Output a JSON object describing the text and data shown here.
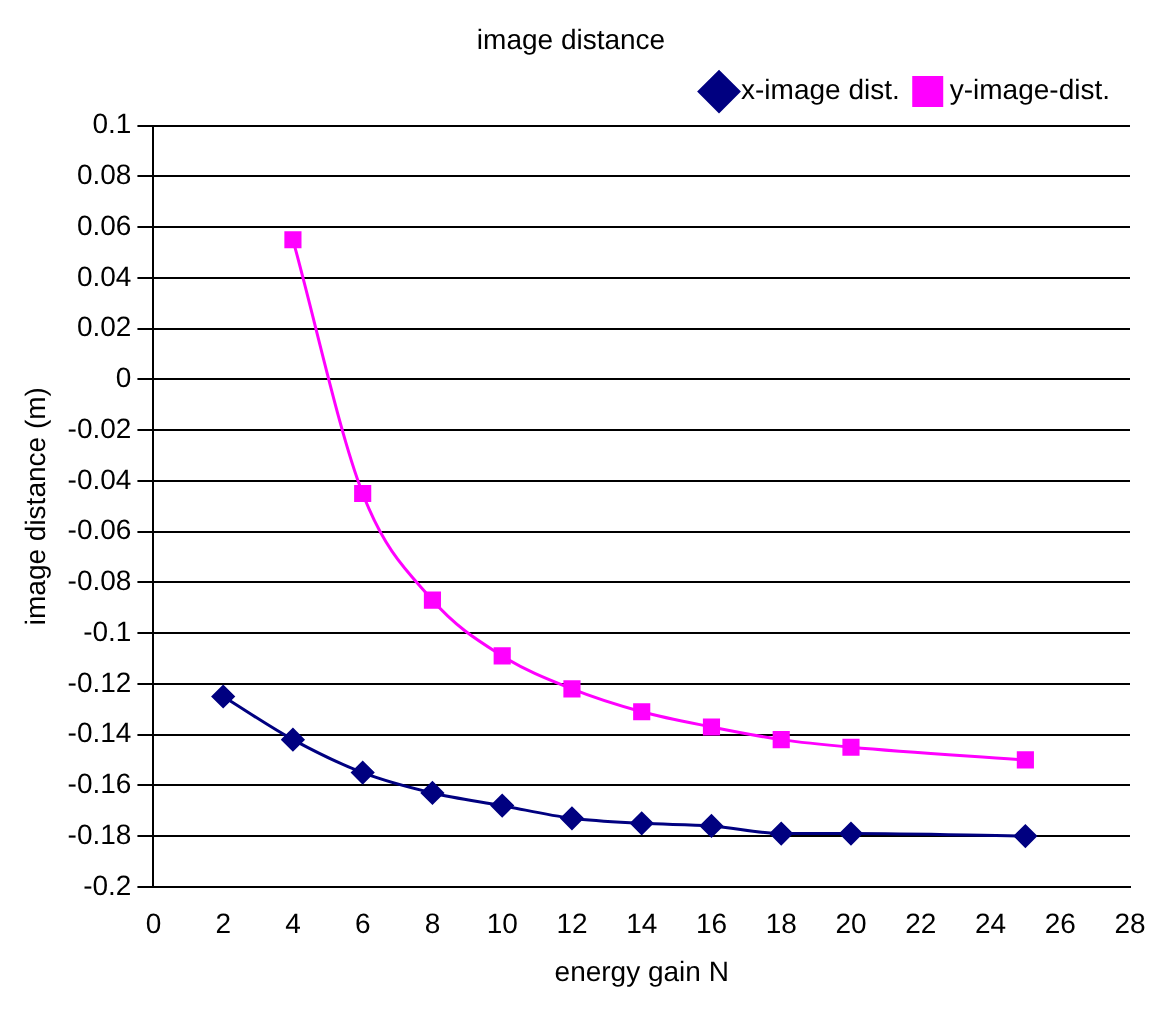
{
  "chart_data": {
    "type": "line",
    "title": "image distance",
    "xlabel": "energy gain N",
    "ylabel": "image distance (m)",
    "x": [
      2,
      4,
      6,
      8,
      10,
      12,
      14,
      16,
      18,
      20,
      25
    ],
    "series": [
      {
        "name": "x-image dist.",
        "color": "#000080",
        "marker": "diamond",
        "values": [
          -0.125,
          -0.142,
          -0.155,
          -0.163,
          -0.168,
          -0.173,
          -0.175,
          -0.176,
          -0.179,
          -0.179,
          -0.18
        ]
      },
      {
        "name": "y-image-dist.",
        "color": "#ff00ff",
        "marker": "square",
        "values": [
          null,
          0.055,
          -0.045,
          -0.087,
          -0.109,
          -0.122,
          -0.131,
          -0.137,
          -0.142,
          -0.145,
          -0.15
        ]
      }
    ],
    "xlim": [
      0,
      28
    ],
    "xticks": [
      0,
      2,
      4,
      6,
      8,
      10,
      12,
      14,
      16,
      18,
      20,
      22,
      24,
      26,
      28
    ],
    "ylim": [
      -0.2,
      0.1
    ],
    "yticks": [
      -0.2,
      -0.18,
      -0.16,
      -0.14,
      -0.12,
      -0.1,
      -0.08,
      -0.06,
      -0.04,
      -0.02,
      0,
      0.02,
      0.04,
      0.06,
      0.08,
      0.1
    ],
    "grid": "y",
    "legend": "top right"
  }
}
